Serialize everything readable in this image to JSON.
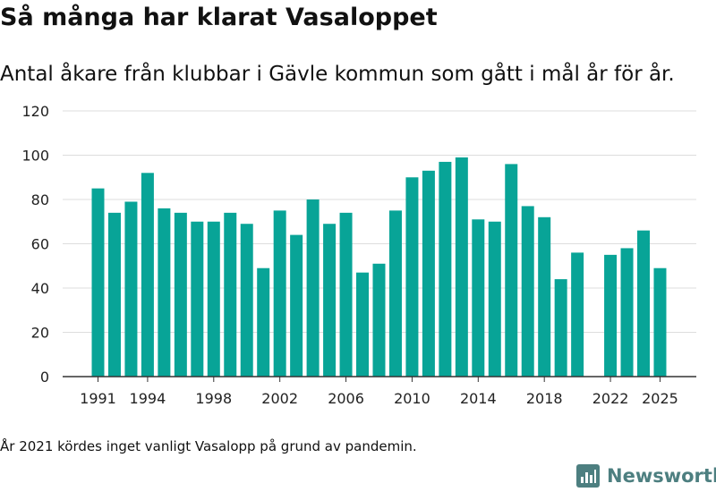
{
  "header": {
    "title": "Så många har klarat Vasaloppet",
    "subtitle": "Antal åkare från klubbar i Gävle kommun som gått i mål år för år."
  },
  "footer": {
    "note": "År 2021 kördes inget vanligt Vasalopp på grund av pandemin.",
    "brand": "Newsworthy",
    "brand_logo_icon": "bar-chart-logo-icon"
  },
  "colors": {
    "bar": "#08a497",
    "grid": "#dddddd",
    "axis": "#333333",
    "brand": "#4d7f80"
  },
  "chart_data": {
    "type": "bar",
    "title": "Så många har klarat Vasaloppet",
    "subtitle": "Antal åkare från klubbar i Gävle kommun som gått i mål år för år.",
    "xlabel": "",
    "ylabel": "",
    "ylim": [
      0,
      120
    ],
    "yticks": [
      0,
      20,
      40,
      60,
      80,
      100,
      120
    ],
    "xticks": [
      "1991",
      "1994",
      "1998",
      "2002",
      "2006",
      "2010",
      "2014",
      "2018",
      "2022",
      "2025"
    ],
    "grid": true,
    "categories": [
      "1991",
      "1992",
      "1993",
      "1994",
      "1995",
      "1996",
      "1997",
      "1998",
      "1999",
      "2000",
      "2001",
      "2002",
      "2003",
      "2004",
      "2005",
      "2006",
      "2007",
      "2008",
      "2009",
      "2010",
      "2011",
      "2012",
      "2013",
      "2014",
      "2015",
      "2016",
      "2017",
      "2018",
      "2019",
      "2020",
      "2021",
      "2022",
      "2023",
      "2024",
      "2025"
    ],
    "values": [
      85,
      74,
      79,
      92,
      76,
      74,
      70,
      70,
      74,
      69,
      49,
      75,
      64,
      80,
      69,
      74,
      47,
      51,
      75,
      90,
      93,
      97,
      99,
      71,
      70,
      96,
      77,
      72,
      44,
      56,
      null,
      55,
      58,
      66,
      49
    ]
  }
}
